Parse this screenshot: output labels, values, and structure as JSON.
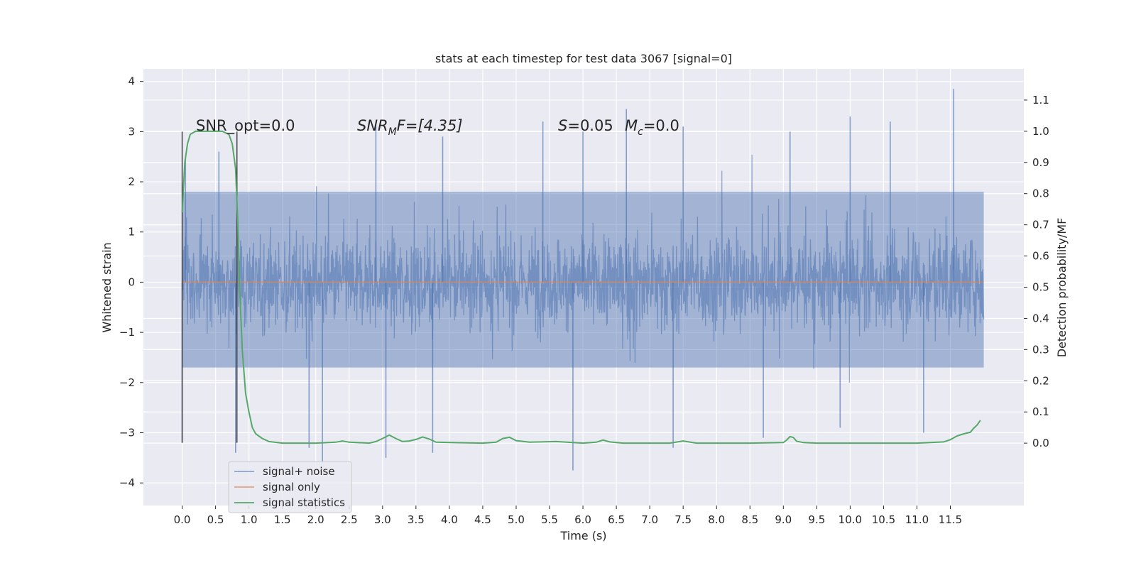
{
  "chart_data": {
    "type": "line",
    "title": "stats at each timestep for test data 3067 [signal=0]",
    "xlabel": "Time (s)",
    "ylabel": "Whitened strain",
    "ylabel_right": "Detection probability/MF",
    "xlim": [
      -0.58,
      12.6
    ],
    "ylim": [
      -4.45,
      4.25
    ],
    "ylim_right": [
      -0.2,
      1.2
    ],
    "x_ticks": [
      0.0,
      0.5,
      1.0,
      1.5,
      2.0,
      2.5,
      3.0,
      3.5,
      4.0,
      4.5,
      5.0,
      5.5,
      6.0,
      6.5,
      7.0,
      7.5,
      8.0,
      8.5,
      9.0,
      9.5,
      10.0,
      10.5,
      11.0,
      11.5
    ],
    "x_tick_labels": [
      "0.0",
      "0.5",
      "1.0",
      "1.5",
      "2.0",
      "2.5",
      "3.0",
      "3.5",
      "4.0",
      "4.5",
      "5.0",
      "5.5",
      "6.0",
      "6.5",
      "7.0",
      "7.5",
      "8.0",
      "8.5",
      "9.0",
      "9.5",
      "10.0",
      "10.5",
      "11.0",
      "11.5"
    ],
    "y_ticks": [
      -4,
      -3,
      -2,
      -1,
      0,
      1,
      2,
      3,
      4
    ],
    "y_tick_labels": [
      "−4",
      "−3",
      "−2",
      "−1",
      "0",
      "1",
      "2",
      "3",
      "4"
    ],
    "y_right_ticks": [
      0.0,
      0.1,
      0.2,
      0.3,
      0.4,
      0.5,
      0.6,
      0.7,
      0.8,
      0.9,
      1.0,
      1.1
    ],
    "y_right_tick_labels": [
      "0.0",
      "0.1",
      "0.2",
      "0.3",
      "0.4",
      "0.5",
      "0.6",
      "0.7",
      "0.8",
      "0.9",
      "1.0",
      "1.1"
    ],
    "grid": true,
    "legend_position": "lower-left",
    "noise": {
      "name": "signal+ noise",
      "color": "#4c72b0",
      "x_range": [
        0.0,
        12.0
      ],
      "typical_envelope": [
        -1.7,
        1.8
      ],
      "peaks_high": [
        [
          0.05,
          2.5
        ],
        [
          0.55,
          2.6
        ],
        [
          2.9,
          3.1
        ],
        [
          3.9,
          2.9
        ],
        [
          5.4,
          3.2
        ],
        [
          6.0,
          3.0
        ],
        [
          6.65,
          3.45
        ],
        [
          7.5,
          3.1
        ],
        [
          9.1,
          3.0
        ],
        [
          10.0,
          3.3
        ],
        [
          10.6,
          3.2
        ],
        [
          11.55,
          3.85
        ]
      ],
      "peaks_low": [
        [
          0.0,
          -3.2
        ],
        [
          0.8,
          -3.4
        ],
        [
          1.9,
          -3.3
        ],
        [
          2.1,
          -3.6
        ],
        [
          3.05,
          -3.5
        ],
        [
          3.75,
          -3.4
        ],
        [
          5.85,
          -3.75
        ],
        [
          7.35,
          -3.3
        ],
        [
          8.7,
          -3.1
        ],
        [
          9.85,
          -2.9
        ],
        [
          11.1,
          -3.0
        ]
      ]
    },
    "signal": {
      "name": "signal only",
      "color": "#dd8452",
      "x_range": [
        0.0,
        12.0
      ],
      "value": 0.0
    },
    "statistics": {
      "name": "signal statistics",
      "color": "#55a868",
      "axis": "right",
      "x": [
        0.0,
        0.04,
        0.08,
        0.12,
        0.2,
        0.3,
        0.4,
        0.5,
        0.6,
        0.7,
        0.75,
        0.8,
        0.83,
        0.86,
        0.9,
        0.95,
        1.0,
        1.05,
        1.1,
        1.2,
        1.3,
        1.5,
        2.0,
        2.3,
        2.4,
        2.5,
        2.8,
        2.9,
        3.0,
        3.1,
        3.2,
        3.3,
        3.4,
        3.5,
        3.6,
        3.7,
        3.8,
        4.5,
        4.7,
        4.8,
        4.9,
        5.0,
        5.2,
        5.6,
        6.0,
        6.2,
        6.3,
        6.4,
        6.6,
        7.3,
        7.5,
        7.7,
        8.5,
        9.0,
        9.05,
        9.1,
        9.15,
        9.2,
        9.3,
        9.5,
        10.0,
        11.0,
        11.4,
        11.5,
        11.6,
        11.7,
        11.8,
        11.85,
        11.9,
        11.95
      ],
      "values": [
        0.74,
        0.9,
        0.96,
        0.99,
        1.0,
        1.0,
        1.0,
        1.0,
        1.0,
        0.99,
        0.96,
        0.88,
        0.72,
        0.5,
        0.3,
        0.16,
        0.1,
        0.05,
        0.03,
        0.015,
        0.005,
        0.0,
        0.0,
        0.003,
        0.007,
        0.003,
        0.0,
        0.005,
        0.015,
        0.026,
        0.015,
        0.005,
        0.007,
        0.012,
        0.02,
        0.013,
        0.003,
        0.0,
        0.003,
        0.015,
        0.019,
        0.008,
        0.003,
        0.005,
        0.0,
        0.003,
        0.01,
        0.004,
        0.0,
        0.0,
        0.007,
        0.0,
        0.0,
        0.002,
        0.01,
        0.021,
        0.018,
        0.006,
        0.002,
        0.0,
        0.0,
        0.0,
        0.004,
        0.011,
        0.023,
        0.03,
        0.035,
        0.048,
        0.058,
        0.073
      ]
    },
    "markers": {
      "color": "#444444",
      "lines": [
        {
          "x": 0.0,
          "y1": -3.2,
          "y2": 3.0
        },
        {
          "x": 0.82,
          "y1": -3.2,
          "y2": 3.0
        }
      ]
    },
    "annotations": {
      "snr_opt": "SNR_opt=0.0",
      "snr_mf_prefix": "SNR",
      "snr_mf_sub": "M",
      "snr_mf_suffix": "F=[4.35]",
      "s_prefix": "S",
      "s_value": "=0.05",
      "mc_prefix": "M",
      "mc_sub": "c",
      "mc_value": "=0.0"
    }
  }
}
